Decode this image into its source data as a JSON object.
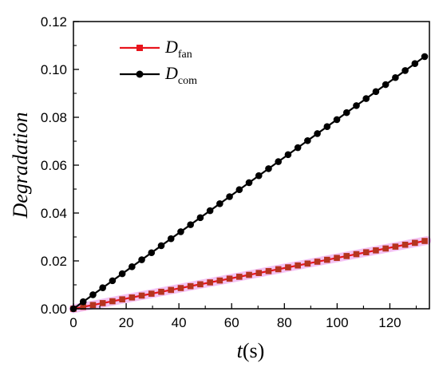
{
  "chart_data": {
    "type": "line",
    "xlabel": {
      "var": "t",
      "unit": "(s)"
    },
    "ylabel": "Degradation",
    "xlim": [
      0,
      135
    ],
    "ylim": [
      0,
      0.12
    ],
    "xticks": [
      "0",
      "20",
      "40",
      "60",
      "80",
      "100",
      "120"
    ],
    "xtick_values": [
      0,
      20,
      40,
      60,
      80,
      100,
      120
    ],
    "yticks": [
      "0.00",
      "0.02",
      "0.04",
      "0.06",
      "0.08",
      "0.10",
      "0.12"
    ],
    "ytick_values": [
      0,
      0.02,
      0.04,
      0.06,
      0.08,
      0.1,
      0.12
    ],
    "legend_position": "top-left",
    "grid": false,
    "series": [
      {
        "name": "D",
        "subscript": "fan",
        "color": "#e8141c",
        "marker": "square",
        "start": [
          0,
          0
        ],
        "end": [
          134,
          0.0285
        ],
        "point_spacing": 3.7
      },
      {
        "name": "D",
        "subscript": "com",
        "color": "#000000",
        "marker": "circle",
        "start": [
          0,
          0
        ],
        "end": [
          134,
          0.106
        ],
        "point_spacing": 3.7
      }
    ]
  }
}
